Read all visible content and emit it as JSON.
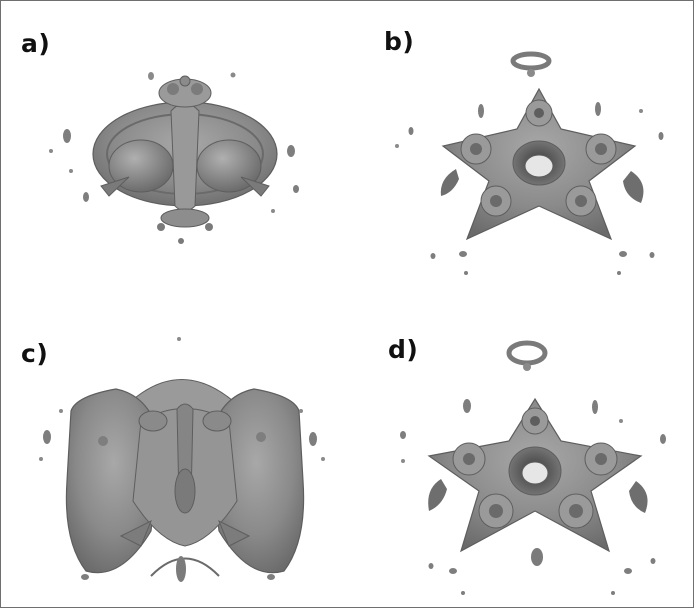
{
  "panels": [
    {
      "label": "a)",
      "description_icon": "isosurface-side-view"
    },
    {
      "label": "b)",
      "description_icon": "isosurface-top-view-pentagon"
    },
    {
      "label": "c)",
      "description_icon": "isosurface-side-view"
    },
    {
      "label": "d)",
      "description_icon": "isosurface-top-view-pentagon"
    }
  ],
  "colors": {
    "surface_fill": "#8c8c8c",
    "surface_light": "#b3b3b3",
    "surface_dark": "#5e5e5e",
    "border": "#6f6f6f",
    "label": "#111111"
  }
}
